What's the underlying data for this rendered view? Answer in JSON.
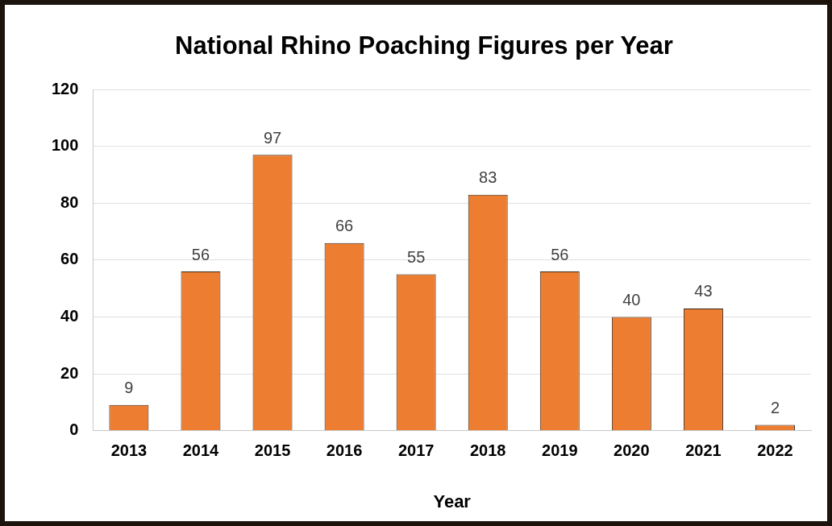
{
  "chart_data": {
    "type": "bar",
    "title": "National Rhino Poaching Figures per Year",
    "xlabel": "Year",
    "categories": [
      "2013",
      "2014",
      "2015",
      "2016",
      "2017",
      "2018",
      "2019",
      "2020",
      "2021",
      "2022"
    ],
    "values": [
      9,
      56,
      97,
      66,
      55,
      83,
      56,
      40,
      43,
      2
    ],
    "color": "#ed7d31",
    "ylim": [
      0,
      120
    ],
    "yticks": [
      0,
      20,
      40,
      60,
      80,
      100,
      120
    ],
    "grid": "y",
    "legend": false,
    "data_labels": true
  }
}
